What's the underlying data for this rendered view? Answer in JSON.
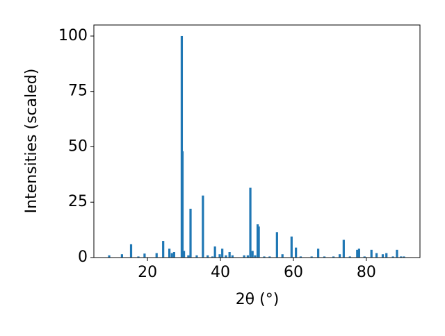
{
  "chart_data": {
    "type": "bar",
    "xlabel": "2θ (°)",
    "ylabel": "Intensities (scaled)",
    "color": "#1f77b4",
    "x": [
      9.5,
      13,
      15.5,
      17.5,
      19.2,
      22.5,
      24.3,
      26,
      26.7,
      27.3,
      29.4,
      29.6,
      30,
      31.2,
      31.8,
      33.5,
      35.2,
      36.5,
      37.8,
      38.5,
      39.8,
      40.5,
      41.5,
      42.5,
      43.3,
      46.5,
      47.5,
      48.2,
      48.8,
      49.5,
      50.2,
      50.5,
      52,
      53.5,
      55.5,
      57,
      59.5,
      60.7,
      62,
      65,
      66.8,
      68.5,
      71,
      72.7,
      73.8,
      75.5,
      77.5,
      78,
      79.5,
      81.4,
      82.8,
      84.5,
      85.5,
      87.3,
      88.4,
      89.5,
      90.3
    ],
    "values": [
      1,
      1.5,
      6,
      0.5,
      1.8,
      2,
      7.5,
      4,
      2,
      2.5,
      100,
      48,
      3,
      1,
      22,
      1,
      28,
      1,
      0.5,
      5,
      1.5,
      4,
      1,
      2.5,
      1,
      1,
      1,
      31.5,
      3,
      1,
      15,
      14,
      0.5,
      0.5,
      11.5,
      1.5,
      9.5,
      4.5,
      0.5,
      0.5,
      4,
      0.5,
      0.5,
      1.5,
      8,
      0.5,
      3.5,
      4,
      0.5,
      3.5,
      2,
      1.5,
      2,
      0.5,
      3.5,
      0.5,
      0.5
    ],
    "xlim": [
      5.3,
      94.7
    ],
    "ylim": [
      0,
      105
    ],
    "xticks": [
      20,
      40,
      60,
      80
    ],
    "yticks": [
      0,
      25,
      50,
      75,
      100
    ]
  }
}
